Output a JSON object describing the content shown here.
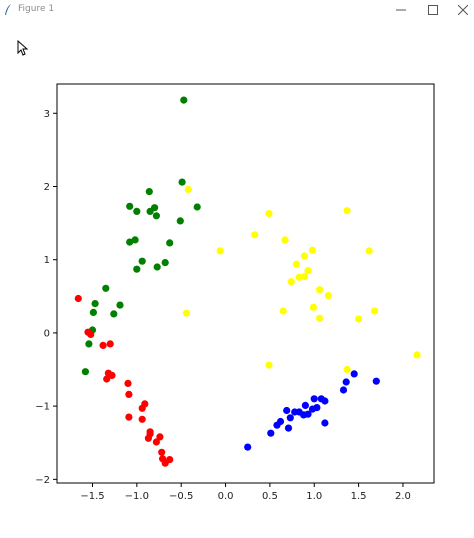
{
  "window": {
    "title": "Figure 1",
    "icons": {
      "app": "feather-icon",
      "minimize": "minimize-icon",
      "maximize": "maximize-icon",
      "close": "close-icon",
      "cursor": "mouse-cursor-icon"
    }
  },
  "chart_data": {
    "type": "scatter",
    "title": "",
    "xlabel": "",
    "ylabel": "",
    "xlim": [
      -1.9,
      2.35
    ],
    "ylim": [
      -2.05,
      3.4
    ],
    "xticks": [
      -1.5,
      -1.0,
      -0.5,
      0.0,
      0.5,
      1.0,
      1.5,
      2.0
    ],
    "yticks": [
      -2,
      -1,
      0,
      1,
      2,
      3
    ],
    "xtick_labels": [
      "−1.5",
      "−1.0",
      "−0.5",
      "0.0",
      "0.5",
      "1.0",
      "1.5",
      "2.0"
    ],
    "ytick_labels": [
      "−2",
      "−1",
      "0",
      "1",
      "2",
      "3"
    ],
    "grid": false,
    "legend": false,
    "series": [
      {
        "color": "#008000",
        "points": [
          [
            -0.47,
            3.18
          ],
          [
            -0.49,
            2.06
          ],
          [
            -0.86,
            1.93
          ],
          [
            -1.08,
            1.73
          ],
          [
            -0.8,
            1.71
          ],
          [
            -0.85,
            1.66
          ],
          [
            -1.0,
            1.66
          ],
          [
            -0.78,
            1.6
          ],
          [
            -0.32,
            1.72
          ],
          [
            -0.51,
            1.53
          ],
          [
            -1.08,
            1.24
          ],
          [
            -1.02,
            1.27
          ],
          [
            -0.63,
            1.23
          ],
          [
            -0.94,
            0.98
          ],
          [
            -0.68,
            0.96
          ],
          [
            -1.0,
            0.87
          ],
          [
            -0.77,
            0.9
          ],
          [
            -1.35,
            0.61
          ],
          [
            -1.47,
            0.4
          ],
          [
            -1.19,
            0.38
          ],
          [
            -1.49,
            0.28
          ],
          [
            -1.26,
            0.26
          ],
          [
            -1.5,
            0.04
          ],
          [
            -1.54,
            -0.15
          ],
          [
            -1.58,
            -0.53
          ]
        ]
      },
      {
        "color": "#ff0000",
        "points": [
          [
            -1.66,
            0.47
          ],
          [
            -1.55,
            0.01
          ],
          [
            -1.52,
            -0.02
          ],
          [
            -1.38,
            -0.17
          ],
          [
            -1.3,
            -0.15
          ],
          [
            -1.32,
            -0.55
          ],
          [
            -1.34,
            -0.63
          ],
          [
            -1.28,
            -0.58
          ],
          [
            -1.1,
            -0.69
          ],
          [
            -1.09,
            -0.84
          ],
          [
            -0.91,
            -0.97
          ],
          [
            -0.94,
            -1.03
          ],
          [
            -1.09,
            -1.15
          ],
          [
            -0.94,
            -1.18
          ],
          [
            -0.85,
            -1.38
          ],
          [
            -0.87,
            -1.44
          ],
          [
            -0.78,
            -1.49
          ],
          [
            -0.74,
            -1.42
          ],
          [
            -0.72,
            -1.63
          ],
          [
            -0.71,
            -1.72
          ],
          [
            -0.68,
            -1.78
          ],
          [
            -0.63,
            -1.73
          ],
          [
            -0.85,
            -1.35
          ]
        ]
      },
      {
        "color": "#ffff00",
        "points": [
          [
            -0.42,
            1.96
          ],
          [
            0.49,
            1.63
          ],
          [
            1.37,
            1.67
          ],
          [
            0.33,
            1.34
          ],
          [
            0.67,
            1.27
          ],
          [
            -0.06,
            1.12
          ],
          [
            0.98,
            1.13
          ],
          [
            1.62,
            1.12
          ],
          [
            0.89,
            1.05
          ],
          [
            0.8,
            0.94
          ],
          [
            0.93,
            0.85
          ],
          [
            0.83,
            0.76
          ],
          [
            0.89,
            0.77
          ],
          [
            0.74,
            0.7
          ],
          [
            1.06,
            0.59
          ],
          [
            1.16,
            0.51
          ],
          [
            0.99,
            0.35
          ],
          [
            0.65,
            0.3
          ],
          [
            1.06,
            0.2
          ],
          [
            -0.44,
            0.27
          ],
          [
            1.68,
            0.3
          ],
          [
            1.5,
            0.19
          ],
          [
            2.16,
            -0.3
          ],
          [
            0.49,
            -0.44
          ],
          [
            1.37,
            -0.5
          ]
        ]
      },
      {
        "color": "#0000ff",
        "points": [
          [
            1.45,
            -0.56
          ],
          [
            1.7,
            -0.66
          ],
          [
            1.36,
            -0.67
          ],
          [
            1.33,
            -0.78
          ],
          [
            1.0,
            -0.9
          ],
          [
            1.08,
            -0.9
          ],
          [
            1.12,
            -0.93
          ],
          [
            0.9,
            -0.99
          ],
          [
            1.03,
            -1.02
          ],
          [
            0.98,
            -1.04
          ],
          [
            0.69,
            -1.06
          ],
          [
            0.78,
            -1.08
          ],
          [
            0.83,
            -1.08
          ],
          [
            0.88,
            -1.12
          ],
          [
            0.93,
            -1.11
          ],
          [
            0.73,
            -1.16
          ],
          [
            0.62,
            -1.21
          ],
          [
            0.58,
            -1.26
          ],
          [
            1.12,
            -1.23
          ],
          [
            0.71,
            -1.3
          ],
          [
            0.51,
            -1.37
          ],
          [
            0.25,
            -1.56
          ]
        ]
      }
    ]
  }
}
